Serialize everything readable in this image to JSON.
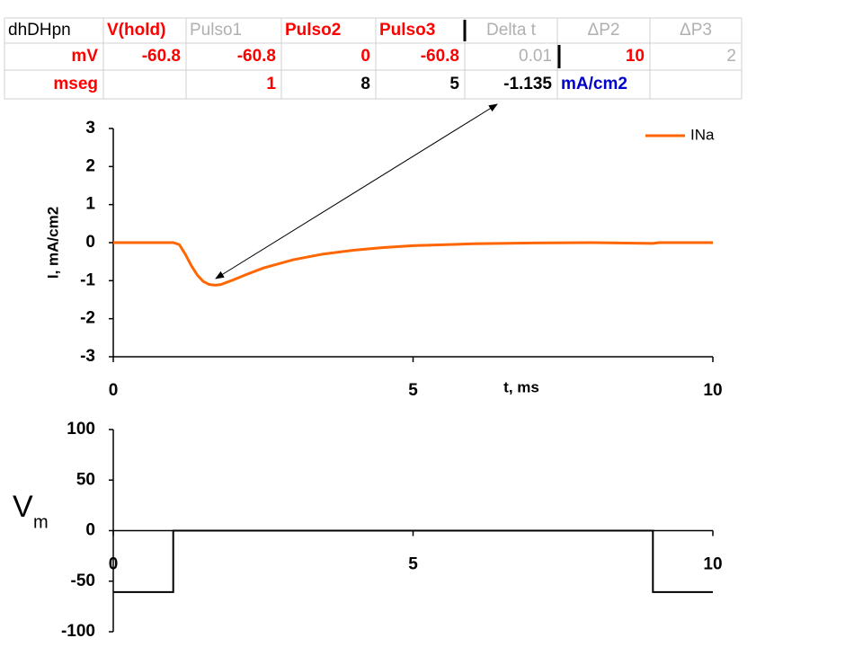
{
  "table": {
    "rows": [
      [
        "dhDHpn",
        "V(hold)",
        "Pulso1",
        "Pulso2",
        "Pulso3",
        "Delta t",
        "ΔP2",
        "ΔP3"
      ],
      [
        "mV",
        "-60.8",
        "-60.8",
        "0",
        "-60.8",
        "0.01",
        "10",
        "2"
      ],
      [
        "mseg",
        null,
        "1",
        "8",
        "5",
        "-1.135",
        "mA/cm2",
        null
      ]
    ]
  },
  "chart_data": [
    {
      "type": "line",
      "xlabel": "t, ms",
      "ylabel": "I, mA/cm2",
      "x": [
        0,
        1,
        1.1,
        1.2,
        1.3,
        1.4,
        1.5,
        1.6,
        1.7,
        1.8,
        2,
        2.2,
        2.5,
        3,
        3.5,
        4,
        4.5,
        5,
        6,
        7,
        8,
        9,
        9.1,
        10
      ],
      "series": [
        {
          "name": "INa",
          "color": "#ff6600",
          "values": [
            0,
            0,
            -0.05,
            -0.3,
            -0.6,
            -0.85,
            -1.02,
            -1.1,
            -1.12,
            -1.1,
            -0.98,
            -0.85,
            -0.67,
            -0.45,
            -0.3,
            -0.2,
            -0.13,
            -0.08,
            -0.03,
            -0.01,
            0,
            -0.02,
            0,
            0
          ]
        }
      ],
      "xlim": [
        0,
        10
      ],
      "xticks": [
        0,
        5,
        10
      ],
      "ylim": [
        -3,
        3
      ],
      "yticks": [
        -3,
        -2,
        -1,
        0,
        1,
        2,
        3
      ],
      "grid": false,
      "legend": "top-right"
    },
    {
      "type": "line",
      "ylabel": {
        "text": "V",
        "subscript": "m"
      },
      "x": [
        0,
        1,
        1,
        9,
        9,
        10
      ],
      "values": [
        -60.8,
        -60.8,
        0,
        0,
        -60.8,
        -60.8
      ],
      "color": "#000000",
      "xlim": [
        0,
        10
      ],
      "xticks": [
        0,
        5,
        10
      ],
      "ylim": [
        -100,
        100
      ],
      "yticks": [
        -100,
        -50,
        0,
        50,
        100
      ],
      "grid": false
    }
  ]
}
